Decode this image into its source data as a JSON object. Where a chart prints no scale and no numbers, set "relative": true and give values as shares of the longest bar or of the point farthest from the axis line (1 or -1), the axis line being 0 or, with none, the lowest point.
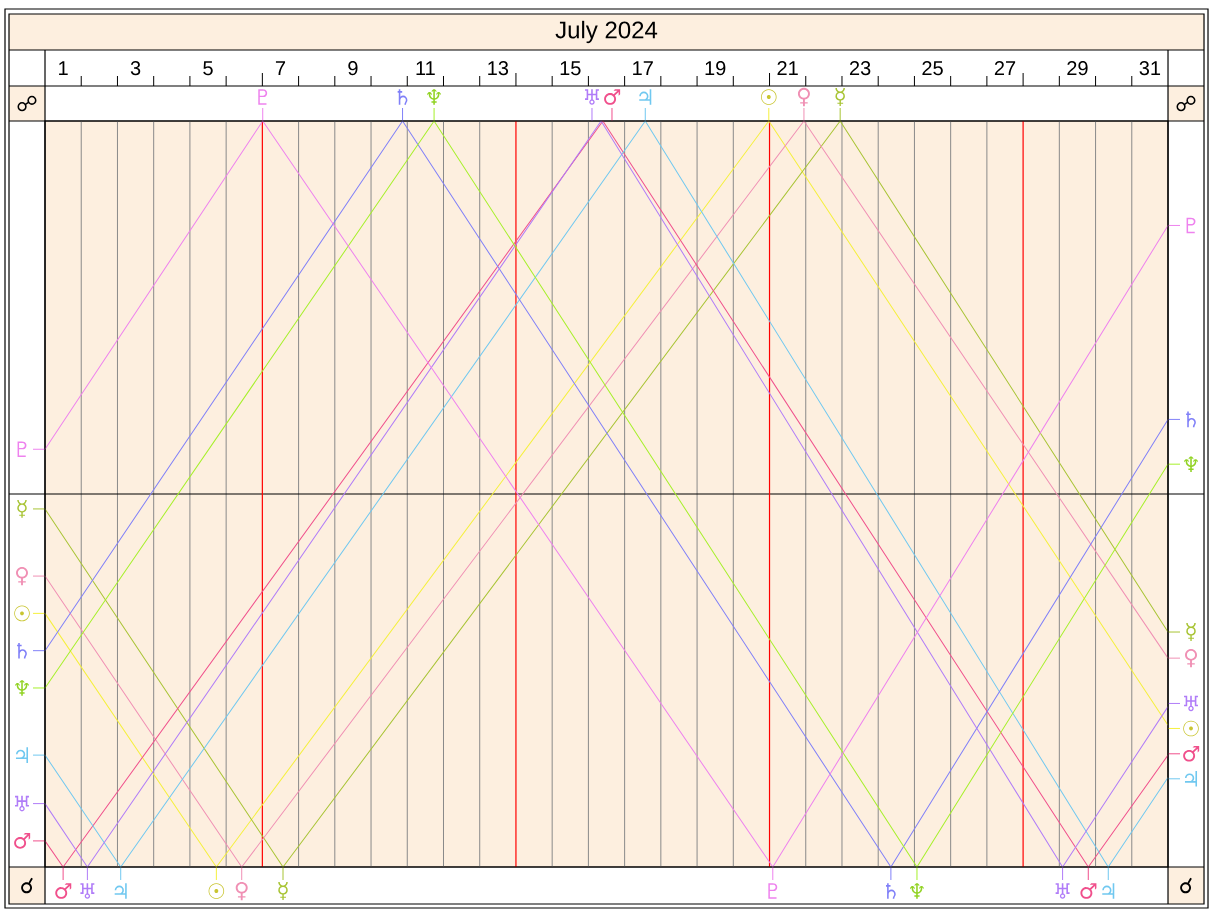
{
  "chart_data": {
    "type": "line",
    "title": "July 2024",
    "relative": true,
    "xlim": [
      0.5,
      31.5
    ],
    "xticks": [
      1,
      {
        "value": 1.5,
        "label": null
      },
      {
        "value": 2.5,
        "label": null
      },
      3,
      {
        "value": 3.5,
        "label": null
      },
      {
        "value": 4.5,
        "label": null
      },
      5,
      {
        "value": 5.5,
        "label": null
      },
      7,
      {
        "value": 7.5,
        "label": null
      },
      {
        "value": 8.5,
        "label": null
      },
      9,
      {
        "value": 9.5,
        "label": null
      },
      {
        "value": 10.5,
        "label": null
      },
      11,
      {
        "value": 11.5,
        "label": null
      },
      {
        "value": 12.5,
        "label": null
      },
      13,
      {
        "value": 14.5,
        "label": null
      },
      15,
      {
        "value": 15.5,
        "label": null
      },
      {
        "value": 16.5,
        "label": null
      },
      17,
      {
        "value": 17.5,
        "label": null
      },
      {
        "value": 18.5,
        "label": null
      },
      19,
      {
        "value": 19.5,
        "label": null
      },
      21,
      {
        "value": 21.5,
        "label": null
      },
      {
        "value": 22.5,
        "label": null
      },
      23,
      {
        "value": 23.5,
        "label": null
      },
      {
        "value": 24.5,
        "label": null
      },
      25,
      {
        "value": 25.5,
        "label": null
      },
      {
        "value": 26.5,
        "label": null
      },
      27,
      {
        "value": 28.5,
        "label": null
      },
      29,
      {
        "value": 29.5,
        "label": null
      },
      {
        "value": 30.5,
        "label": null
      },
      31
    ],
    "grid": "x",
    "legend": "right",
    "series": [
      {
        "name": "☉",
        "color": "#f5f03c",
        "x": [
          0.5,
          5.23,
          20.48,
          31.5
        ],
        "values": [
          0.34,
          0,
          1,
          0.19
        ]
      },
      {
        "name": "☿",
        "color": "#a8c434",
        "x": [
          0.5,
          7.07,
          22.45,
          31.5
        ],
        "values": [
          0.48,
          0,
          1,
          0.315
        ]
      },
      {
        "name": "♀",
        "color": "#f090b4",
        "x": [
          0.5,
          5.93,
          21.45,
          31.5
        ],
        "values": [
          0.39,
          0,
          1,
          0.28
        ]
      },
      {
        "name": "♂",
        "color": "#f0508c",
        "x": [
          0.5,
          1.0,
          15.9,
          29.3,
          31.5
        ],
        "values": [
          0.035,
          0,
          1,
          0,
          0.15
        ]
      },
      {
        "name": "♃",
        "color": "#70c8f0",
        "x": [
          0.5,
          2.59,
          17.07,
          29.85,
          31.5
        ],
        "values": [
          0.15,
          0,
          1,
          0,
          0.12
        ]
      },
      {
        "name": "♄",
        "color": "#8080f8",
        "x": [
          0.5,
          10.37,
          23.85,
          31.5
        ],
        "values": [
          0.29,
          1,
          0,
          0.6
        ]
      },
      {
        "name": "♅",
        "color": "#b07cf8",
        "x": [
          0.5,
          1.67,
          15.85,
          28.59,
          31.5
        ],
        "values": [
          0.085,
          0,
          1,
          0,
          0.215
        ]
      },
      {
        "name": "♆",
        "color": "#a6f02a",
        "x": [
          0.5,
          11.24,
          24.57,
          31.5
        ],
        "values": [
          0.24,
          1,
          0,
          0.54
        ]
      },
      {
        "name": "♇",
        "color": "#ee82ee",
        "x": [
          0.5,
          6.51,
          20.59,
          31.5
        ],
        "values": [
          0.56,
          1,
          0,
          0.86
        ]
      }
    ],
    "annotations": [
      "☍",
      "☌"
    ],
    "ref_lines": [
      {
        "axis": "y",
        "value": 0.5,
        "color": "#000000"
      },
      {
        "axis": "x",
        "value": 6.5,
        "color": "#ff0000"
      },
      {
        "axis": "x",
        "value": 13.5,
        "color": "#ff0000"
      },
      {
        "axis": "x",
        "value": 20.5,
        "color": "#ff0000"
      },
      {
        "axis": "x",
        "value": 27.5,
        "color": "#ff0000"
      }
    ]
  }
}
